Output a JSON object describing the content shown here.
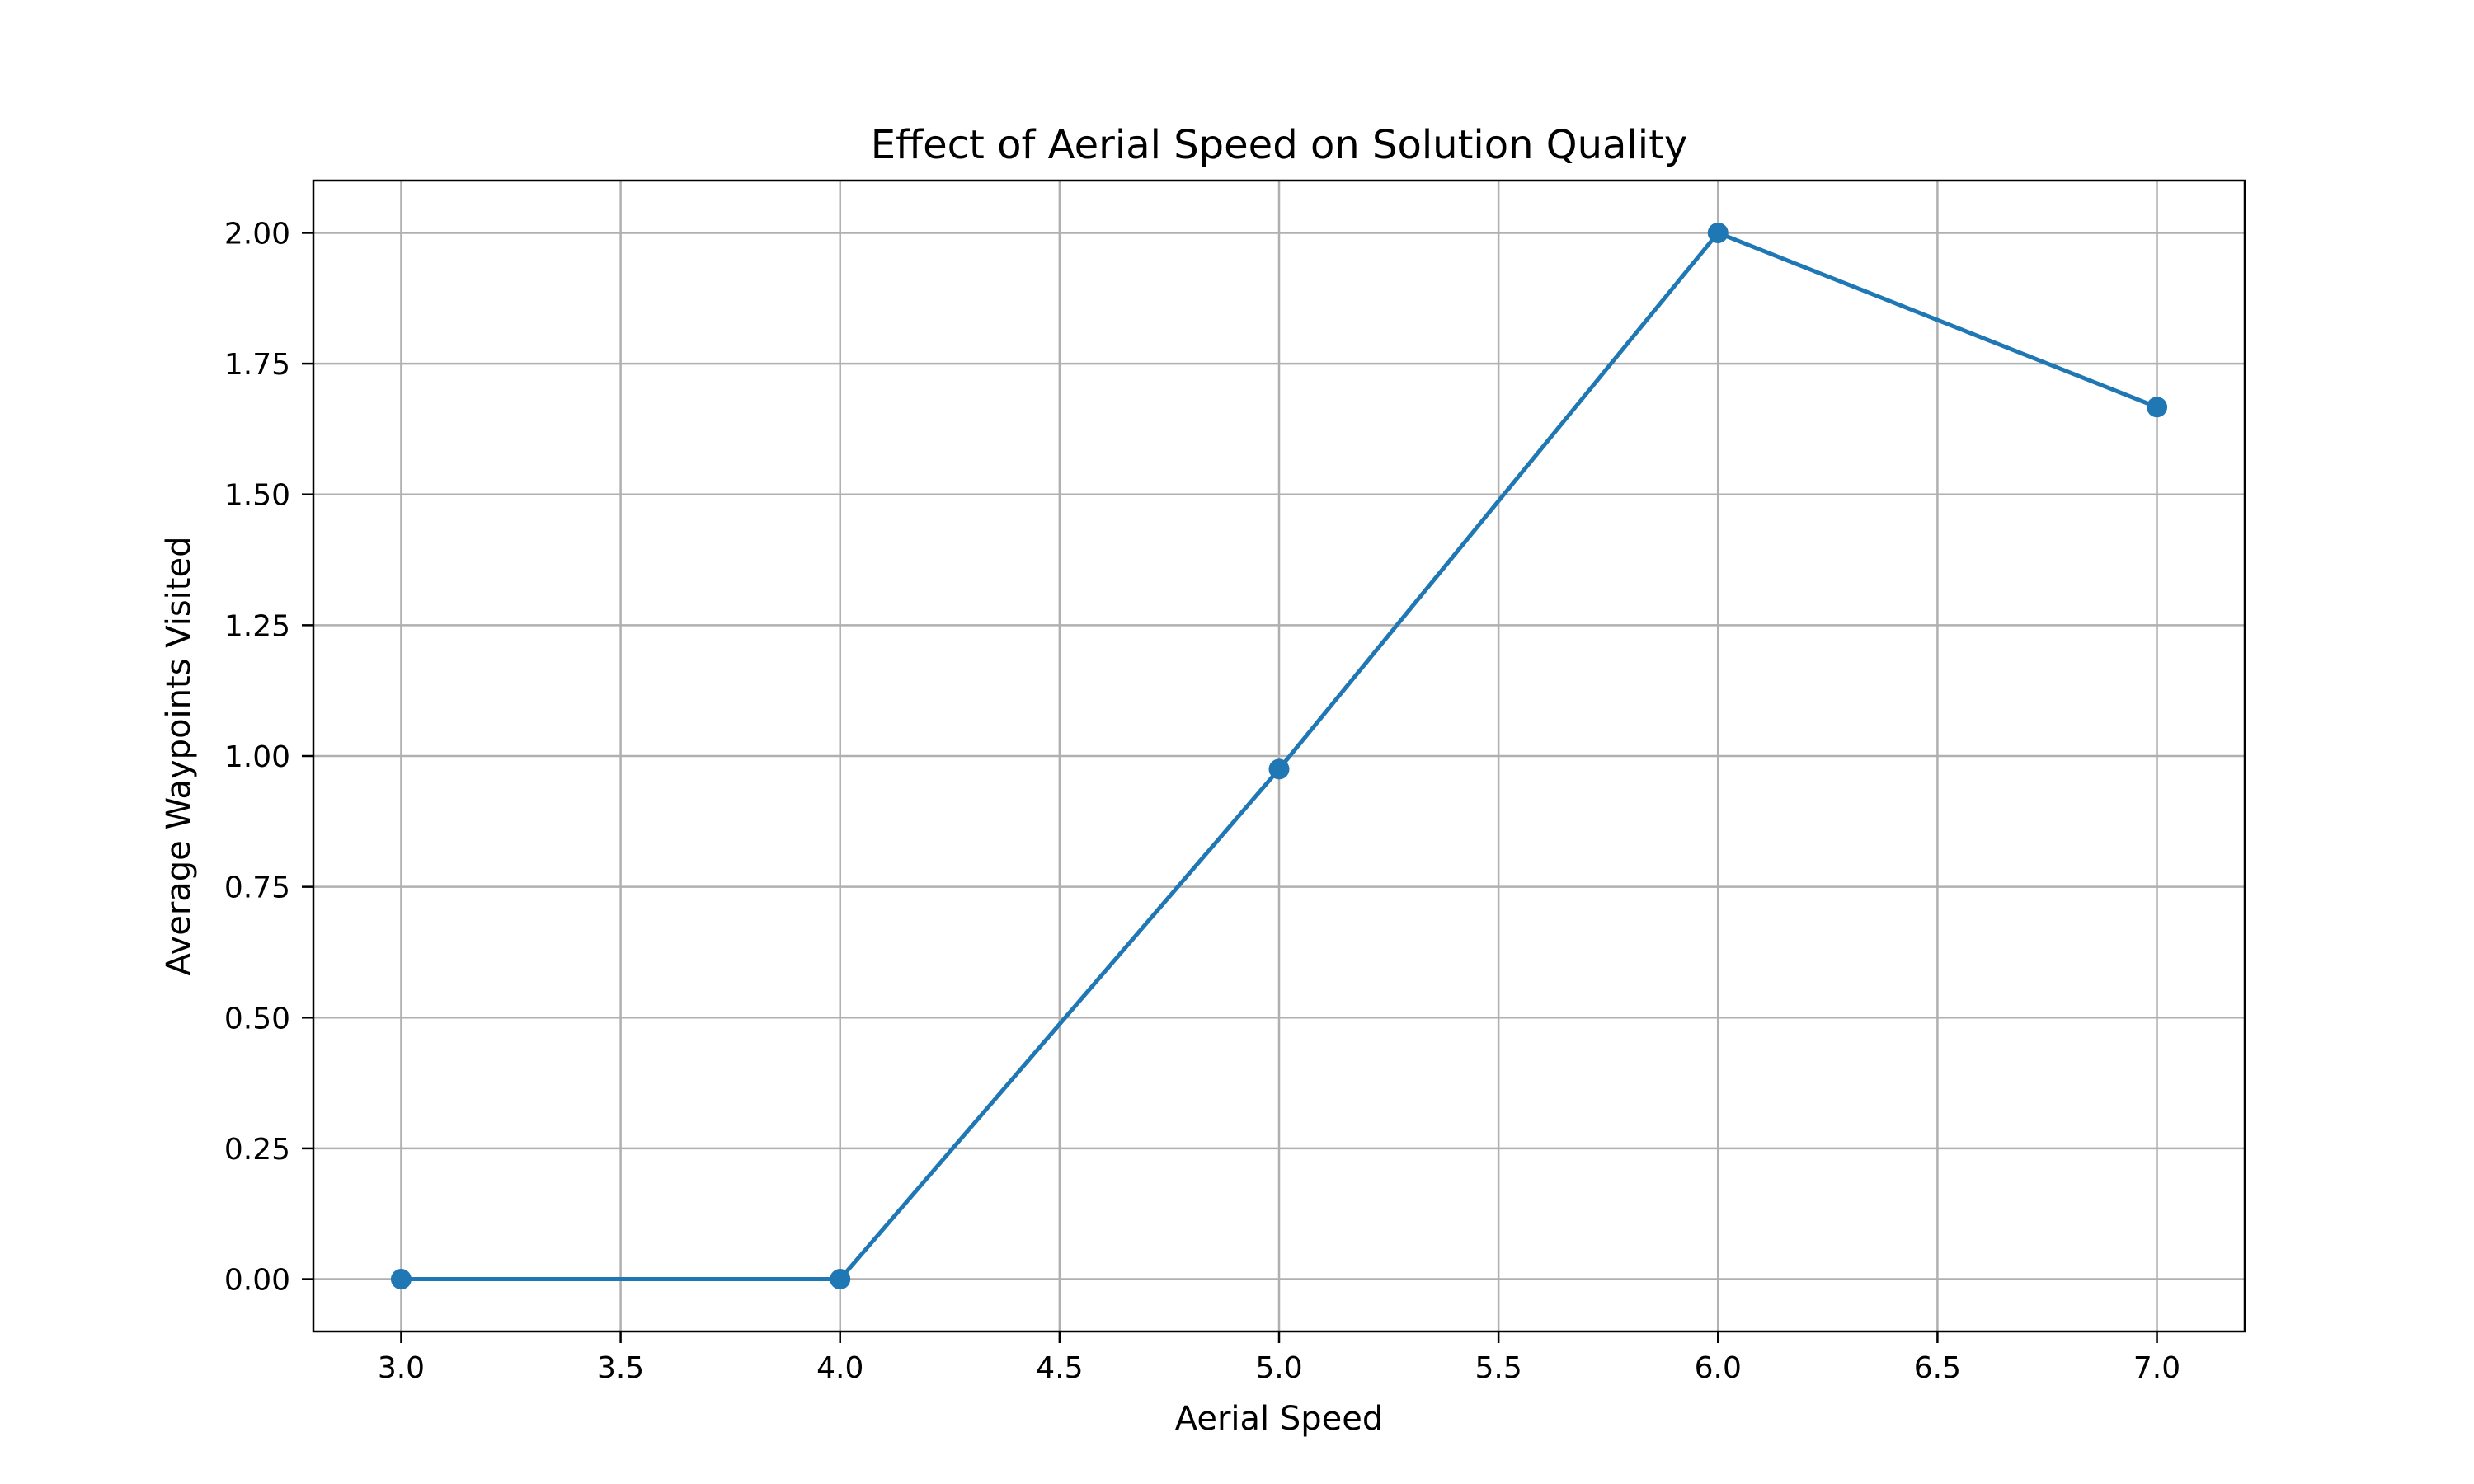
{
  "chart_data": {
    "type": "line",
    "title": "Effect of Aerial Speed on Solution Quality",
    "xlabel": "Aerial Speed",
    "ylabel": "Average Waypoints Visited",
    "x": [
      3.0,
      4.0,
      5.0,
      6.0,
      7.0
    ],
    "series": [
      {
        "values": [
          0.0,
          0.0,
          0.975,
          2.0,
          1.667
        ]
      }
    ],
    "xlim": [
      2.8,
      7.2
    ],
    "ylim": [
      -0.1,
      2.1
    ],
    "xticks": [
      3.0,
      3.5,
      4.0,
      4.5,
      5.0,
      5.5,
      6.0,
      6.5,
      7.0
    ],
    "xtick_labels": [
      "3.0",
      "3.5",
      "4.0",
      "4.5",
      "5.0",
      "5.5",
      "6.0",
      "6.5",
      "7.0"
    ],
    "yticks": [
      0.0,
      0.25,
      0.5,
      0.75,
      1.0,
      1.25,
      1.5,
      1.75,
      2.0
    ],
    "ytick_labels": [
      "0.00",
      "0.25",
      "0.50",
      "0.75",
      "1.00",
      "1.25",
      "1.50",
      "1.75",
      "2.00"
    ],
    "grid": true,
    "markers": true,
    "colors": {
      "series": "#1f77b4",
      "grid": "#b0b0b0",
      "axes": "#000000"
    }
  }
}
